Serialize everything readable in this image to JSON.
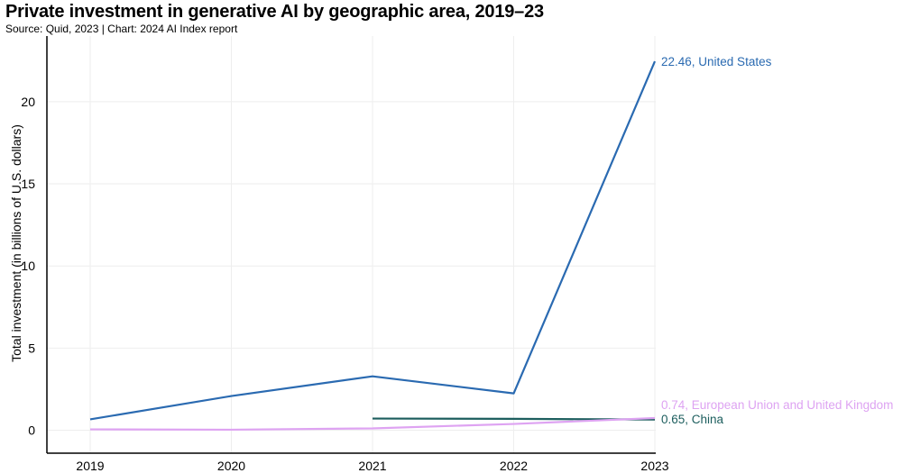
{
  "chart_data": {
    "type": "line",
    "title": "Private investment in generative AI by geographic area, 2019–23",
    "subtitle": "Source: Quid, 2023 | Chart: 2024 AI Index report",
    "xlabel": "",
    "ylabel": "Total investment (in billions of U.S. dollars)",
    "x": [
      2019,
      2020,
      2021,
      2022,
      2023
    ],
    "xticks": [
      "2019",
      "2020",
      "2021",
      "2022",
      "2023"
    ],
    "yticks": [
      0,
      5,
      10,
      15,
      20
    ],
    "ylim": [
      -1.4,
      24
    ],
    "grid": true,
    "series": [
      {
        "name": "United States",
        "color": "#2a6ab1",
        "values": [
          0.66,
          2.08,
          3.28,
          2.24,
          22.46
        ],
        "end_label": "22.46, United States"
      },
      {
        "name": "China",
        "color": "#1d5e5e",
        "values": [
          null,
          null,
          0.71,
          0.69,
          0.65
        ],
        "end_label": "0.65, China"
      },
      {
        "name": "European Union and United Kingdom",
        "color": "#dea3f2",
        "values": [
          0.05,
          0.03,
          0.11,
          0.38,
          0.74
        ],
        "end_label": "0.74, European Union and United Kingdom"
      }
    ]
  }
}
